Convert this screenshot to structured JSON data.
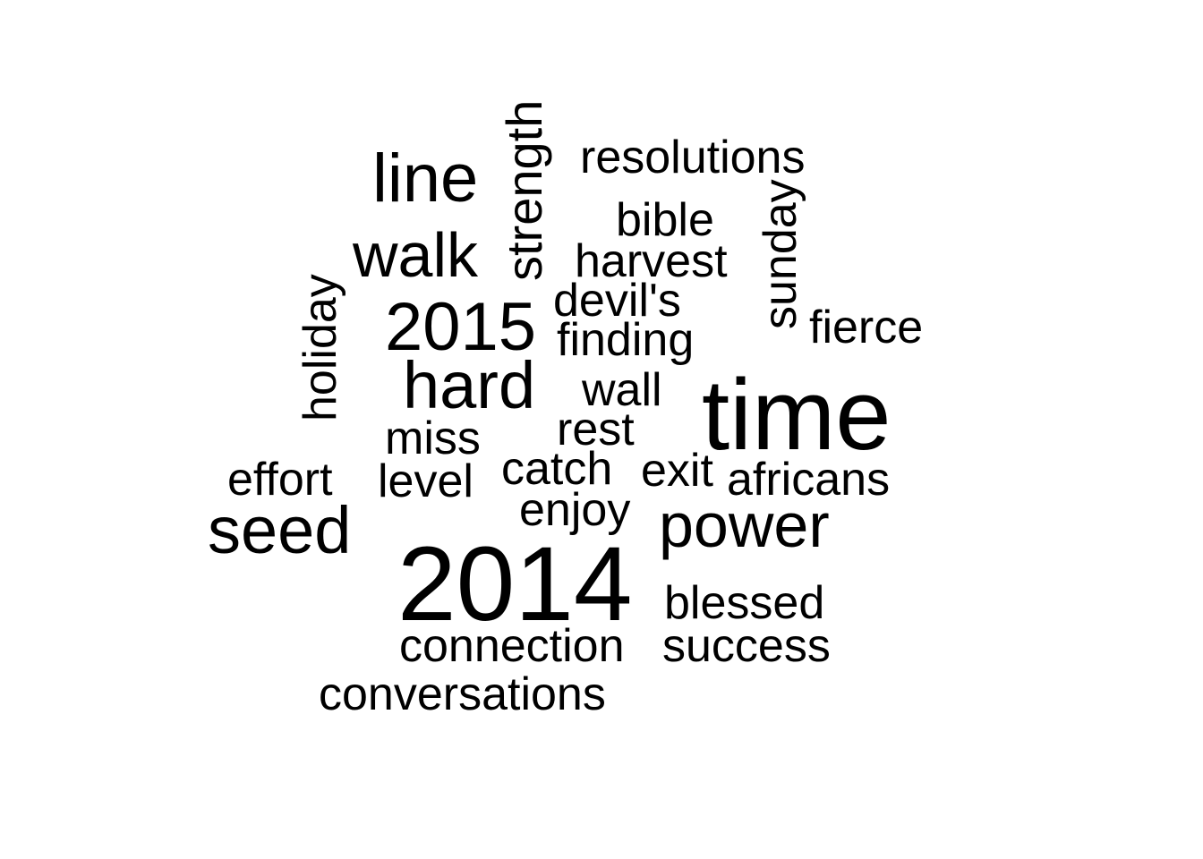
{
  "cloud": {
    "text_color": "#000000",
    "background_color": "#ffffff",
    "words": [
      {
        "text": "time",
        "weight": 10,
        "rotated": false
      },
      {
        "text": "2014",
        "weight": 10,
        "rotated": false
      },
      {
        "text": "line",
        "weight": 6,
        "rotated": false
      },
      {
        "text": "walk",
        "weight": 6,
        "rotated": false
      },
      {
        "text": "2015",
        "weight": 6,
        "rotated": false
      },
      {
        "text": "hard",
        "weight": 6,
        "rotated": false
      },
      {
        "text": "seed",
        "weight": 6,
        "rotated": false
      },
      {
        "text": "power",
        "weight": 6,
        "rotated": false
      },
      {
        "text": "strength",
        "weight": 5,
        "rotated": true
      },
      {
        "text": "resolutions",
        "weight": 4,
        "rotated": false
      },
      {
        "text": "bible",
        "weight": 4,
        "rotated": false
      },
      {
        "text": "harvest",
        "weight": 4,
        "rotated": false
      },
      {
        "text": "sunday",
        "weight": 4,
        "rotated": true
      },
      {
        "text": "holiday",
        "weight": 4,
        "rotated": true
      },
      {
        "text": "devil's",
        "weight": 4,
        "rotated": false
      },
      {
        "text": "finding",
        "weight": 4,
        "rotated": false
      },
      {
        "text": "fierce",
        "weight": 4,
        "rotated": false
      },
      {
        "text": "wall",
        "weight": 4,
        "rotated": false
      },
      {
        "text": "miss",
        "weight": 4,
        "rotated": false
      },
      {
        "text": "rest",
        "weight": 4,
        "rotated": false
      },
      {
        "text": "effort",
        "weight": 4,
        "rotated": false
      },
      {
        "text": "level",
        "weight": 4,
        "rotated": false
      },
      {
        "text": "catch",
        "weight": 4,
        "rotated": false
      },
      {
        "text": "exit",
        "weight": 4,
        "rotated": false
      },
      {
        "text": "africans",
        "weight": 4,
        "rotated": false
      },
      {
        "text": "enjoy",
        "weight": 4,
        "rotated": false
      },
      {
        "text": "blessed",
        "weight": 4,
        "rotated": false
      },
      {
        "text": "connection",
        "weight": 4,
        "rotated": false
      },
      {
        "text": "success",
        "weight": 4,
        "rotated": false
      },
      {
        "text": "conversations",
        "weight": 4,
        "rotated": false
      }
    ]
  }
}
